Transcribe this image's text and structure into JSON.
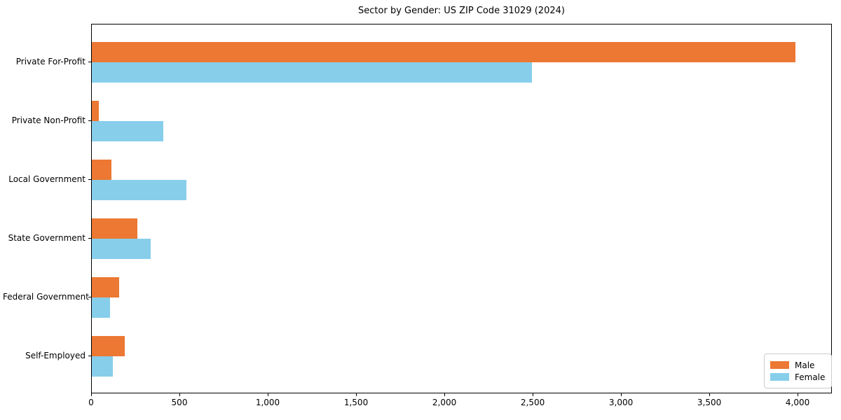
{
  "chart_data": {
    "type": "bar",
    "orientation": "horizontal",
    "title": "Sector by Gender: US ZIP Code 31029 (2024)",
    "categories": [
      "Private For-Profit",
      "Private Non-Profit",
      "Local Government",
      "State Government",
      "Federal Government",
      "Self-Employed"
    ],
    "series": [
      {
        "name": "Male",
        "color": "#ec7833",
        "values": [
          3990,
          40,
          110,
          260,
          155,
          185
        ]
      },
      {
        "name": "Female",
        "color": "#87ceeb",
        "values": [
          2495,
          405,
          535,
          335,
          105,
          120
        ]
      }
    ],
    "xlabel": "",
    "ylabel": "",
    "xlim": [
      0,
      4194
    ],
    "xticks": [
      0,
      500,
      1000,
      1500,
      2000,
      2500,
      3000,
      3500,
      4000
    ],
    "xtick_labels": [
      "0",
      "500",
      "1,000",
      "1,500",
      "2,000",
      "2,500",
      "3,000",
      "3,500",
      "4,000"
    ],
    "grid": false,
    "legend": {
      "position": "lower right",
      "entries": [
        "Male",
        "Female"
      ]
    }
  }
}
